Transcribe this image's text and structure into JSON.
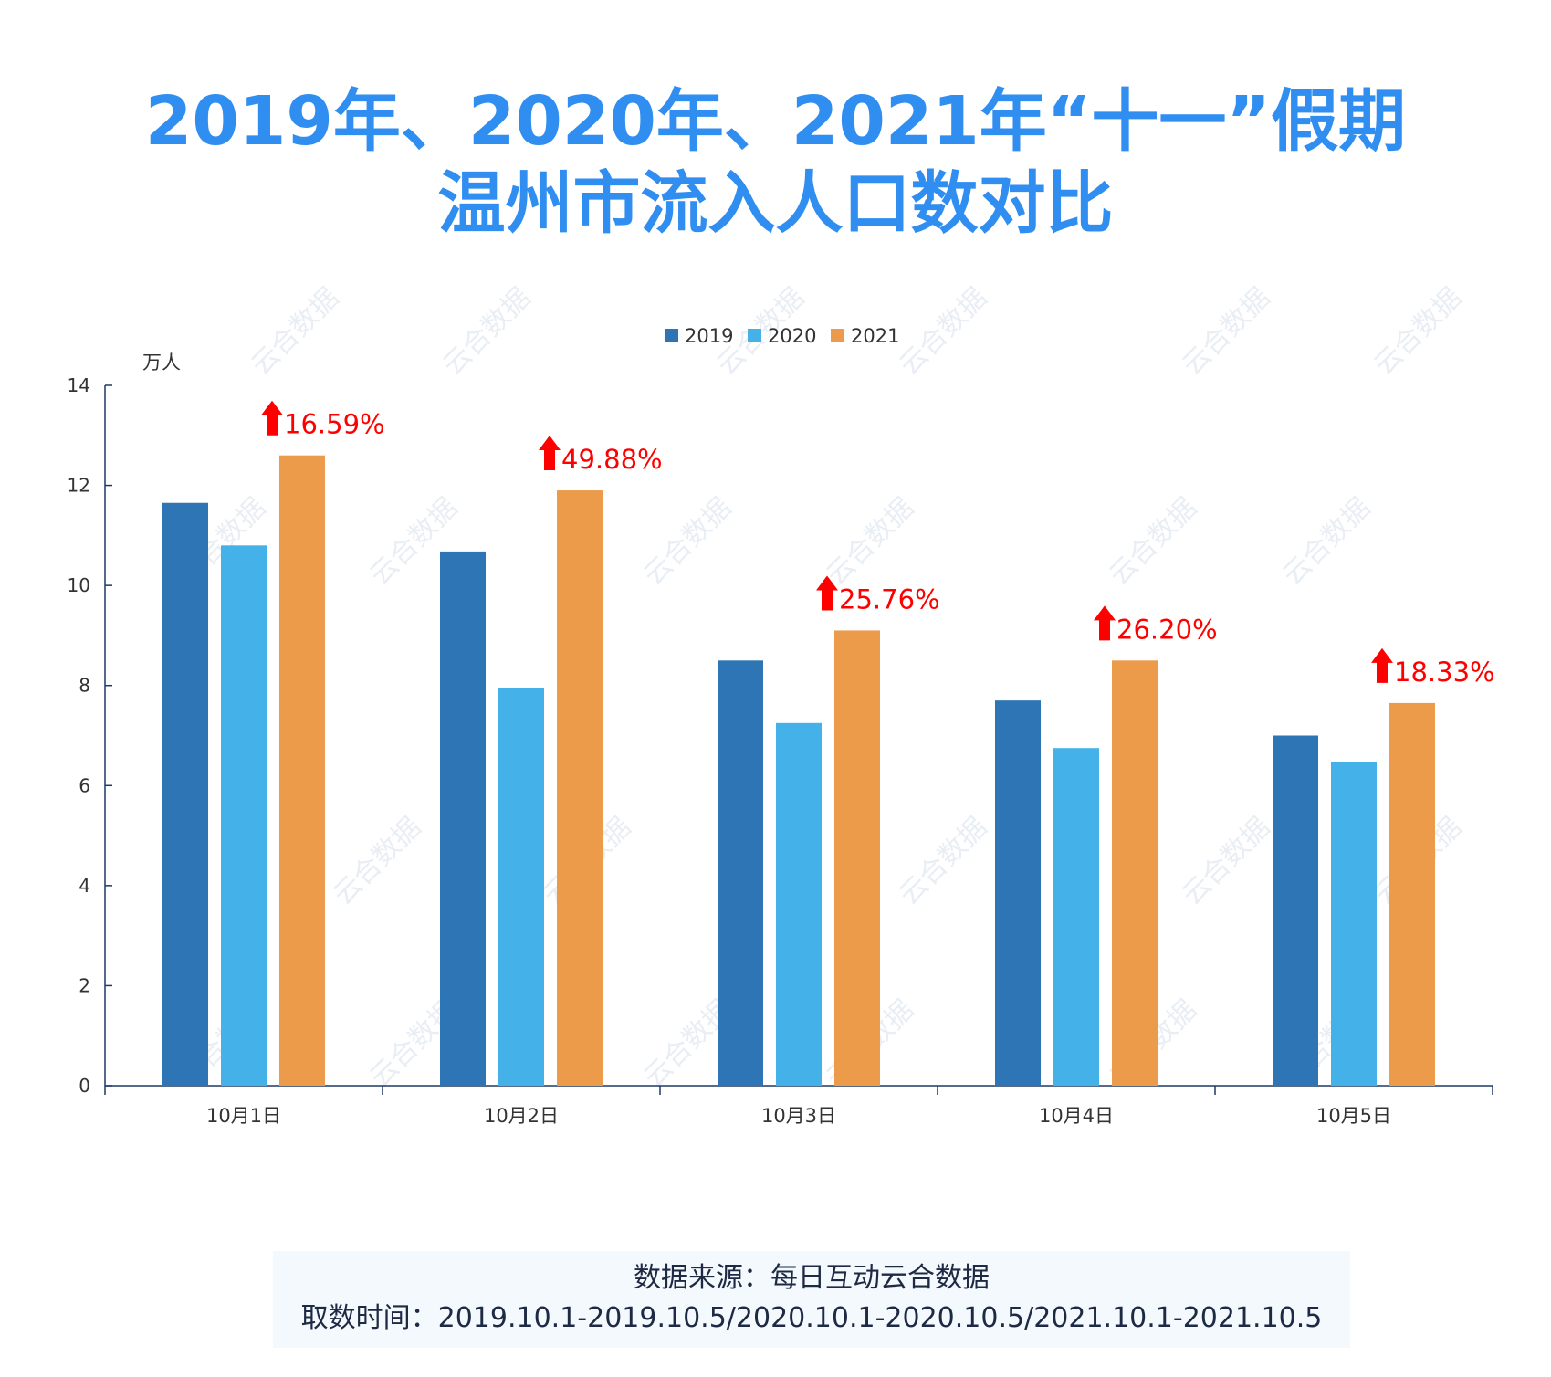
{
  "title": {
    "line1": "2019年、2020年、2021年“十一”假期",
    "line2": "温州市流入人口数对比"
  },
  "source": {
    "line1": "数据来源：每日互动云合数据",
    "line2": "取数时间：2019.10.1-2019.10.5/2020.10.1-2020.10.5/2021.10.1-2021.10.5"
  },
  "watermark": "云合数据",
  "chart_data": {
    "type": "bar",
    "unit_label": "万人",
    "categories": [
      "10月1日",
      "10月2日",
      "10月3日",
      "10月4日",
      "10月5日"
    ],
    "series": [
      {
        "name": "2019",
        "color": "#2e75b6",
        "values": [
          11.65,
          10.68,
          8.5,
          7.7,
          7.0
        ]
      },
      {
        "name": "2020",
        "color": "#44b1e9",
        "values": [
          10.8,
          7.95,
          7.25,
          6.75,
          6.47
        ]
      },
      {
        "name": "2021",
        "color": "#eb9b4a",
        "values": [
          12.6,
          11.9,
          9.1,
          8.5,
          7.65
        ]
      }
    ],
    "growth_labels": [
      "16.59%",
      "49.88%",
      "25.76%",
      "26.20%",
      "18.33%"
    ],
    "growth_color": "#ff0000",
    "ylim": [
      0,
      14
    ],
    "yticks": [
      0,
      2,
      4,
      6,
      8,
      10,
      12,
      14
    ],
    "legend_position": "top-center",
    "grid": false
  }
}
